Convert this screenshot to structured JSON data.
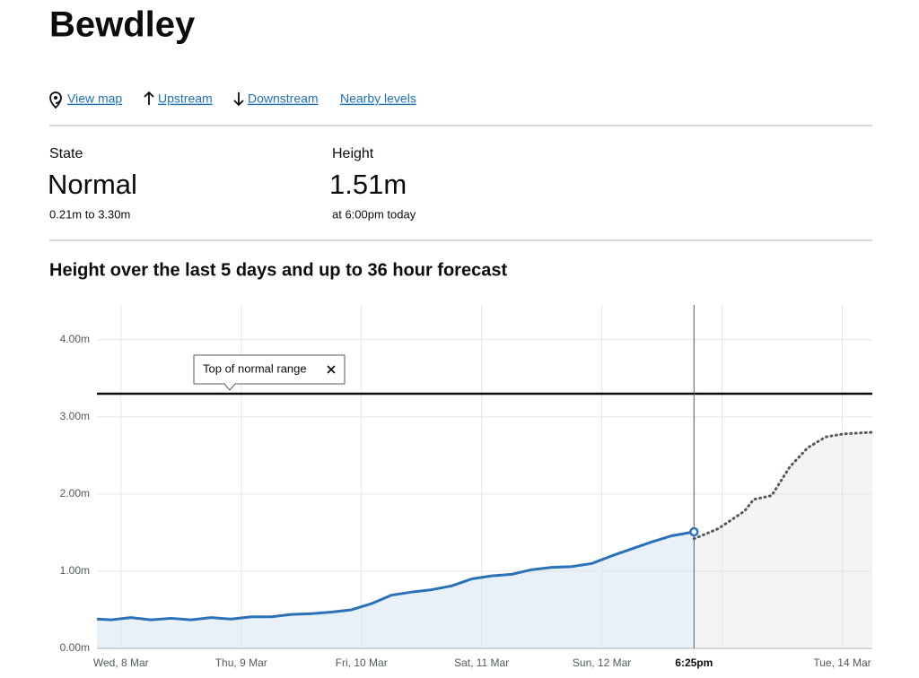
{
  "header": {
    "title": "Bewdley"
  },
  "nav": {
    "links": [
      "View map",
      "Upstream",
      "Downstream",
      "Nearby levels"
    ]
  },
  "summary": {
    "state": {
      "label": "State",
      "value": "Normal",
      "detail": "0.21m to 3.30m"
    },
    "height": {
      "label": "Height",
      "value": "1.51m",
      "detail": "at 6:00pm today"
    }
  },
  "chart_data": {
    "type": "line",
    "title": "Height over the last 5 days and up to 36 hour forecast",
    "xlim": [
      -4.8,
      150
    ],
    "xticks": [
      {
        "value": 0,
        "label": "Wed, 8 Mar"
      },
      {
        "value": 24,
        "label": "Thu, 9 Mar"
      },
      {
        "value": 48,
        "label": "Fri, 10 Mar"
      },
      {
        "value": 72,
        "label": "Sat, 11 Mar"
      },
      {
        "value": 96,
        "label": "Sun, 12 Mar"
      },
      {
        "value": 120,
        "label": null
      },
      {
        "value": 144,
        "label": "Tue, 14 Mar"
      }
    ],
    "ylim": [
      0,
      4.45
    ],
    "yticks": [
      {
        "value": 0,
        "label": "0.00m"
      },
      {
        "value": 1,
        "label": "1.00m"
      },
      {
        "value": 2,
        "label": "2.00m"
      },
      {
        "value": 3,
        "label": "3.00m"
      },
      {
        "value": 4,
        "label": "4.00m"
      }
    ],
    "grid": true,
    "now": {
      "value": 114.4,
      "label": "6:25pm"
    },
    "reference_line": {
      "value": 3.3,
      "label": "Top of normal range"
    },
    "series": [
      {
        "color": "#2b71b8",
        "fill": "#e8f0f8",
        "style": "solid",
        "x": [
          -4.8,
          -2,
          2,
          6,
          10,
          14,
          18,
          22,
          26,
          30,
          34,
          38,
          42,
          46,
          50,
          54,
          58,
          62,
          66,
          70,
          74,
          78,
          82,
          86,
          90,
          94,
          98,
          102,
          106,
          110,
          114.4
        ],
        "values": [
          0.38,
          0.37,
          0.4,
          0.37,
          0.39,
          0.37,
          0.4,
          0.38,
          0.41,
          0.41,
          0.44,
          0.45,
          0.47,
          0.5,
          0.58,
          0.69,
          0.73,
          0.76,
          0.81,
          0.9,
          0.94,
          0.96,
          1.02,
          1.05,
          1.06,
          1.1,
          1.2,
          1.29,
          1.38,
          1.46,
          1.51
        ]
      },
      {
        "color": "#505a5f",
        "fill": "#f4f4f4",
        "style": "dotted",
        "x": [
          114.4,
          119.2,
          124.5,
          126.3,
          129.9,
          133.5,
          137.1,
          140.7,
          144.3,
          150
        ],
        "values": [
          1.42,
          1.55,
          1.78,
          1.93,
          1.98,
          2.35,
          2.6,
          2.74,
          2.78,
          2.8
        ]
      }
    ]
  }
}
